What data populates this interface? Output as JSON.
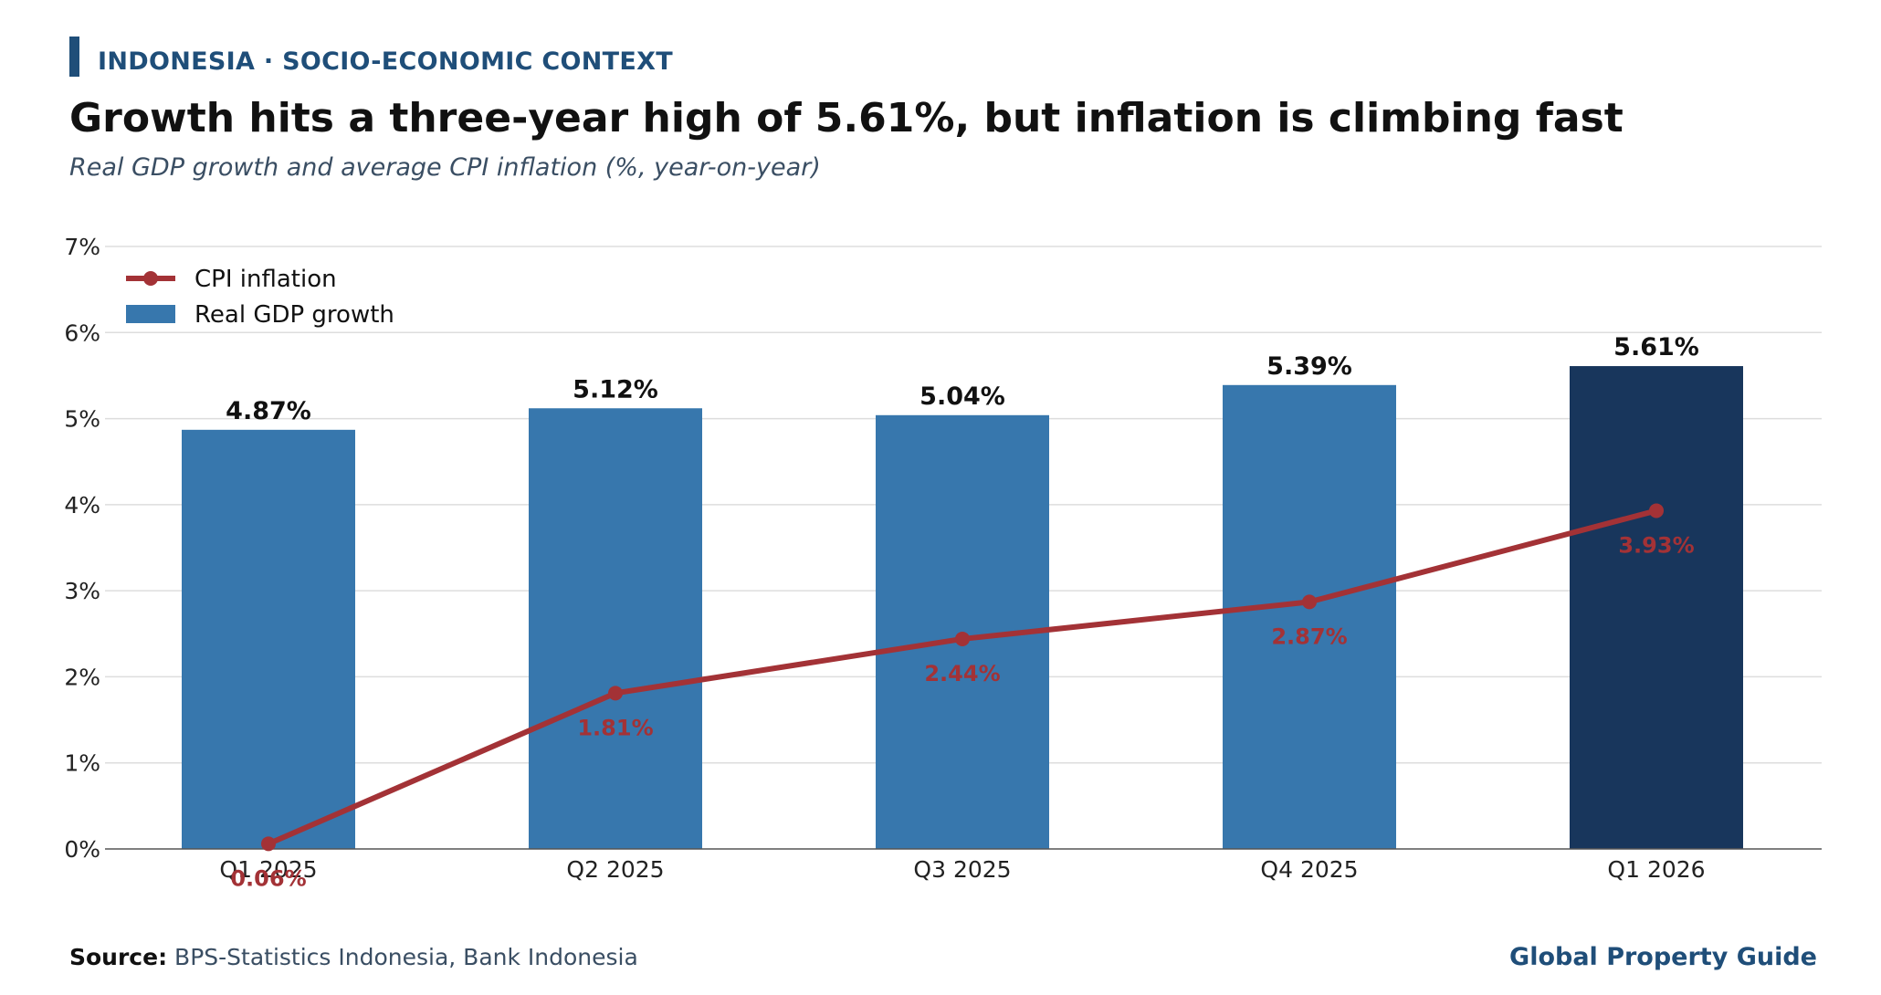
{
  "header": {
    "kicker": "INDONESIA · SOCIO-ECONOMIC CONTEXT",
    "title": "Growth hits a three-year high of 5.61%, but inflation is climbing fast",
    "subtitle": "Real GDP growth and average CPI inflation (%, year-on-year)"
  },
  "footer": {
    "source_label": "Source:",
    "source_text": "BPS-Statistics Indonesia, Bank Indonesia",
    "brand": "Global Property Guide"
  },
  "colors": {
    "bar": "#3777ad",
    "bar_highlight": "#18365c",
    "line": "#a33236",
    "grid": "#dddddd",
    "axis": "#555555",
    "kicker": "#1f4e79"
  },
  "chart_data": {
    "type": "bar",
    "categories": [
      "Q1 2025",
      "Q2 2025",
      "Q3 2025",
      "Q4 2025",
      "Q1 2026"
    ],
    "series": [
      {
        "name": "Real GDP growth",
        "type": "bar",
        "values": [
          4.87,
          5.12,
          5.04,
          5.39,
          5.61
        ],
        "labels": [
          "4.87%",
          "5.12%",
          "5.04%",
          "5.39%",
          "5.61%"
        ],
        "highlight_last": true
      },
      {
        "name": "CPI inflation",
        "type": "line",
        "values": [
          0.06,
          1.81,
          2.44,
          2.87,
          3.93
        ],
        "labels": [
          "0.06%",
          "1.81%",
          "2.44%",
          "2.87%",
          "3.93%"
        ]
      }
    ],
    "ylim": [
      0,
      7
    ],
    "yticks": [
      "0%",
      "1%",
      "2%",
      "3%",
      "4%",
      "5%",
      "6%",
      "7%"
    ],
    "grid": true,
    "legend": "top-left"
  }
}
